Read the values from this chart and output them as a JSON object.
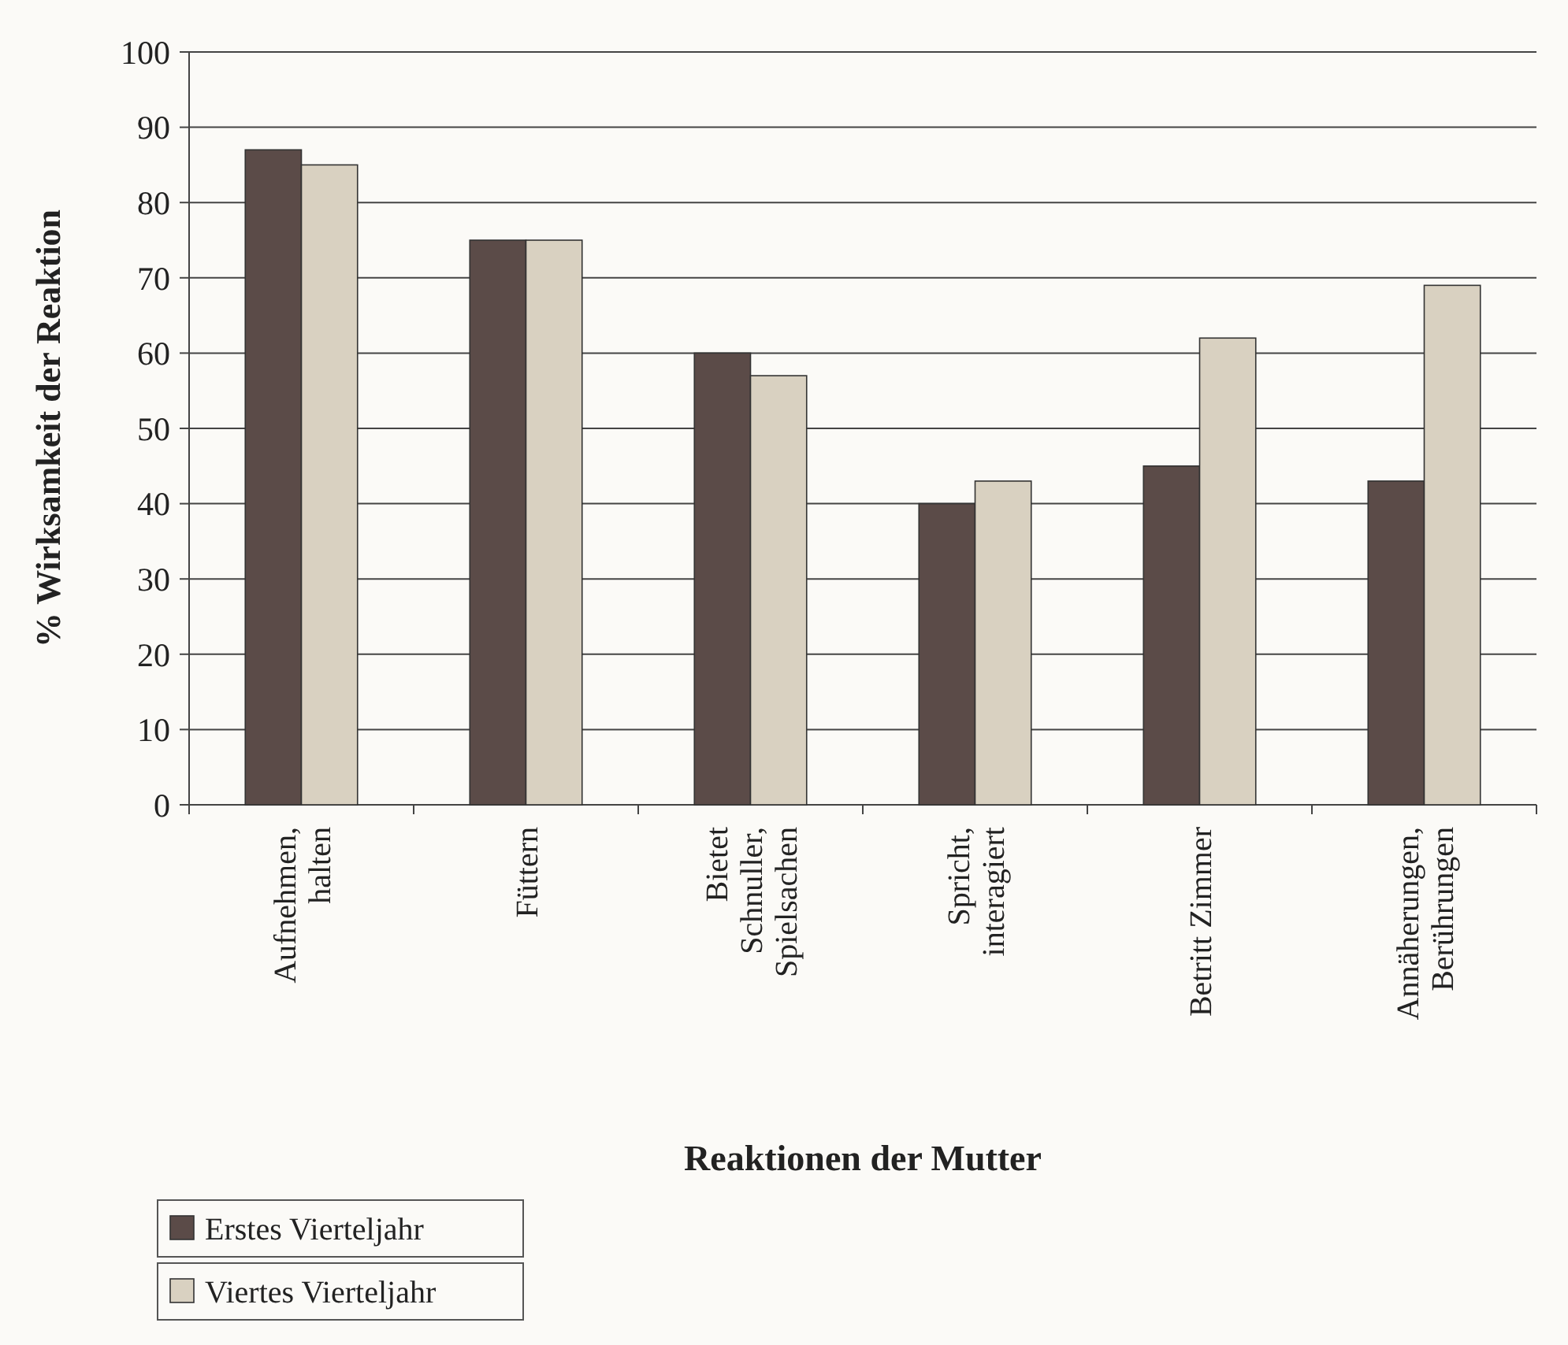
{
  "chart_data": {
    "type": "bar",
    "xlabel": "Reaktionen der Mutter",
    "ylabel": "% Wirksamkeit der Reaktion",
    "categories": [
      "Aufnehmen,\nhalten",
      "Füttern",
      "Bietet\nSchnuller,\nSpielsachen",
      "Spricht,\ninteragiert",
      "Betritt Zimmer",
      "Annäherungen,\nBerührungen"
    ],
    "series": [
      {
        "name": "Erstes Vierteljahr",
        "color": "#5b4b48",
        "values": [
          87,
          75,
          60,
          40,
          45,
          43
        ]
      },
      {
        "name": "Viertes Vierteljahr",
        "color": "#d9d1c1",
        "values": [
          85,
          75,
          57,
          43,
          62,
          69
        ]
      }
    ],
    "ylim": [
      0,
      100
    ],
    "yticks": [
      0,
      10,
      20,
      30,
      40,
      50,
      60,
      70,
      80,
      90,
      100
    ],
    "grid": "y",
    "legend": "bottom left"
  }
}
